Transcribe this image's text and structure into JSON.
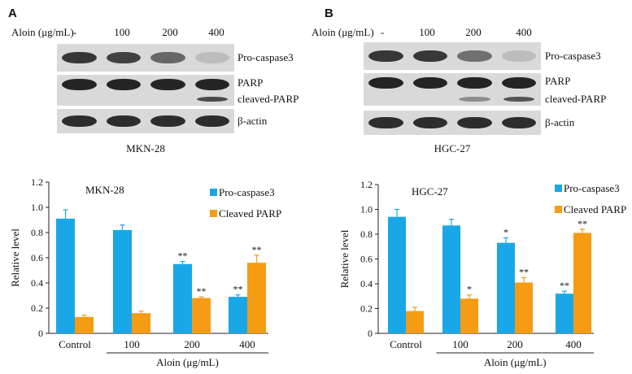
{
  "panels": [
    {
      "letter": "A",
      "cell_line": "MKN-28",
      "treatment_label": "Aloin (μg/mL)",
      "lanes": [
        "-",
        "100",
        "200",
        "400"
      ],
      "band_labels": [
        "Pro-caspase3",
        "PARP",
        "cleaved-PARP",
        "β-actin"
      ],
      "band_intensity": {
        "pro_caspase3": [
          0.85,
          0.8,
          0.6,
          0.15
        ],
        "parp": [
          0.95,
          0.95,
          0.95,
          0.95
        ],
        "cleaved_parp": [
          0.0,
          0.0,
          0.0,
          0.75
        ],
        "beta_actin": [
          0.9,
          0.9,
          0.9,
          0.9
        ]
      }
    },
    {
      "letter": "B",
      "cell_line": "HGC-27",
      "treatment_label": "Aloin (μg/mL)",
      "lanes": [
        "-",
        "100",
        "200",
        "400"
      ],
      "band_labels": [
        "Pro-caspase3",
        "PARP",
        "cleaved-PARP",
        "β-actin"
      ],
      "band_intensity": {
        "pro_caspase3": [
          0.85,
          0.85,
          0.55,
          0.15
        ],
        "parp": [
          0.95,
          0.95,
          0.95,
          0.95
        ],
        "cleaved_parp": [
          0.0,
          0.0,
          0.4,
          0.7
        ],
        "beta_actin": [
          0.9,
          0.9,
          0.9,
          0.9
        ]
      }
    }
  ],
  "colors": {
    "pro_caspase3": "#1aa7e8",
    "cleaved_parp": "#f59b14",
    "band": "#1a1a1a"
  },
  "chart_data": [
    {
      "type": "bar",
      "title": "MKN-28",
      "categories": [
        "Control",
        "100",
        "200",
        "400"
      ],
      "xlabel": "Aloin (μg/mL)",
      "ylabel": "Relative level",
      "ylim": [
        0,
        1.2
      ],
      "yticks": [
        "0",
        "0.2",
        "0.4",
        "0.6",
        "0.8",
        "1.0",
        "1.2"
      ],
      "legend": "top-right",
      "series": [
        {
          "name": "Pro-caspase3",
          "values": [
            0.91,
            0.82,
            0.55,
            0.29
          ],
          "errors": [
            0.07,
            0.04,
            0.02,
            0.015
          ],
          "sig": [
            "",
            "",
            "**",
            "**"
          ]
        },
        {
          "name": "Cleaved PARP",
          "values": [
            0.13,
            0.16,
            0.28,
            0.56
          ],
          "errors": [
            0.015,
            0.015,
            0.01,
            0.06
          ],
          "sig": [
            "",
            "",
            "**",
            "**"
          ]
        }
      ]
    },
    {
      "type": "bar",
      "title": "HGC-27",
      "categories": [
        "Control",
        "100",
        "200",
        "400"
      ],
      "xlabel": "Aloin (μg/mL)",
      "ylabel": "Relative level",
      "ylim": [
        0,
        1.2
      ],
      "yticks": [
        "0",
        "0.2",
        "0.4",
        "0.6",
        "0.8",
        "1.0",
        "1.2"
      ],
      "legend": "top-right",
      "series": [
        {
          "name": "Pro-caspase3",
          "values": [
            0.94,
            0.87,
            0.73,
            0.32
          ],
          "errors": [
            0.06,
            0.05,
            0.04,
            0.02
          ],
          "sig": [
            "",
            "",
            "*",
            "**"
          ]
        },
        {
          "name": "Cleaved PARP",
          "values": [
            0.18,
            0.28,
            0.41,
            0.81
          ],
          "errors": [
            0.03,
            0.03,
            0.04,
            0.03
          ],
          "sig": [
            "",
            "*",
            "**",
            "**"
          ]
        }
      ]
    }
  ]
}
